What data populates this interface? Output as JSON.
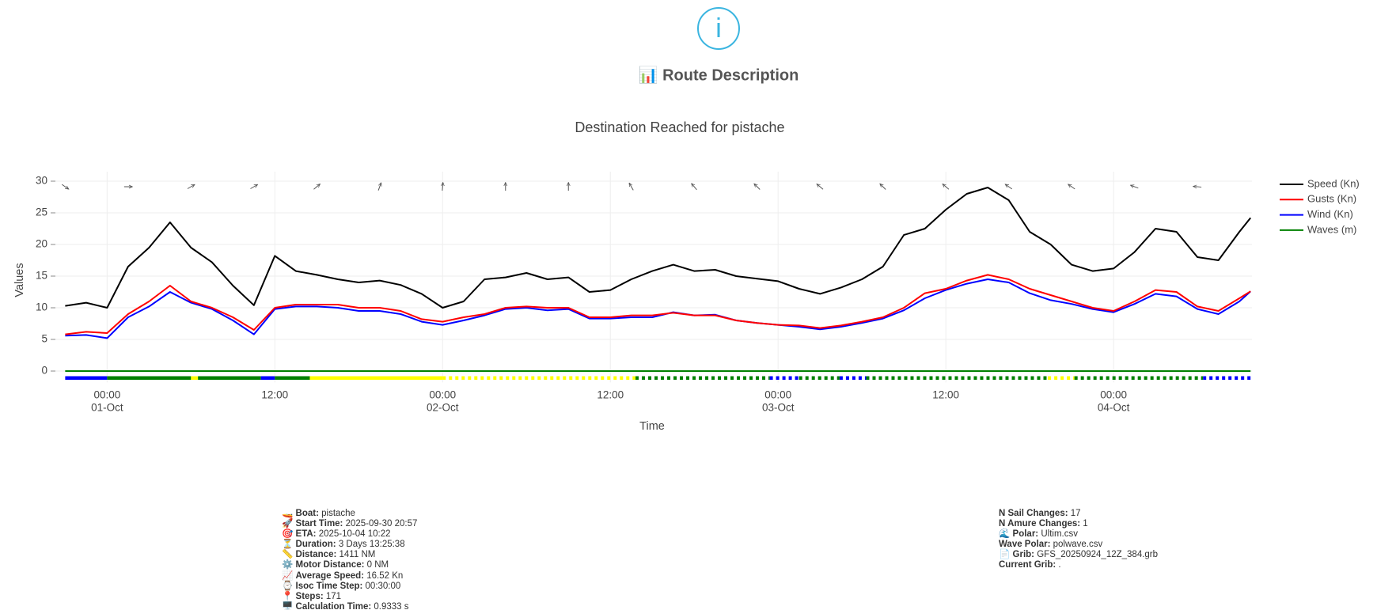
{
  "header": {
    "heading": "📊 Route Description"
  },
  "chart_data": {
    "type": "line",
    "title": "Destination Reached for pistache",
    "xlabel": "Time",
    "ylabel": "Values",
    "x": [
      -3,
      -1.5,
      0,
      1.5,
      3,
      4.5,
      6,
      7.5,
      9,
      10.5,
      12,
      13.5,
      15,
      16.5,
      18,
      19.5,
      21,
      22.5,
      24,
      25.5,
      27,
      28.5,
      30,
      31.5,
      33,
      34.5,
      36,
      37.5,
      39,
      40.5,
      42,
      43.5,
      45,
      46.5,
      48,
      49.5,
      51,
      52.5,
      54,
      55.5,
      57,
      58.5,
      60,
      61.5,
      63,
      64.5,
      66,
      67.5,
      69,
      70.5,
      72,
      73.5,
      75,
      76.5,
      78,
      79.5,
      81,
      81.8
    ],
    "series": [
      {
        "name": "Speed (Kn)",
        "color": "#000000",
        "values": [
          10.3,
          10.8,
          10.0,
          16.5,
          19.5,
          23.5,
          19.5,
          17.2,
          13.5,
          10.4,
          18.2,
          15.8,
          15.2,
          14.5,
          14.0,
          14.3,
          13.6,
          12.2,
          10.0,
          11.0,
          14.5,
          14.8,
          15.5,
          14.5,
          14.8,
          12.5,
          12.8,
          14.5,
          15.8,
          16.8,
          15.8,
          16.0,
          15.0,
          14.6,
          14.2,
          13.0,
          12.2,
          13.2,
          14.5,
          16.5,
          21.5,
          22.5,
          25.5,
          28.0,
          29.0,
          27.0,
          22.0,
          20.0,
          16.8,
          15.8,
          16.2,
          18.8,
          22.5,
          22.0,
          18.0,
          17.5,
          22.0,
          24.2
        ]
      },
      {
        "name": "Gusts (Kn)",
        "color": "#ff0000",
        "values": [
          5.8,
          6.2,
          6,
          9,
          11,
          13.5,
          11,
          10,
          8.5,
          6.5,
          10,
          10.5,
          10.5,
          10.5,
          10,
          10,
          9.5,
          8.2,
          7.8,
          8.5,
          9,
          10,
          10.2,
          10,
          10,
          8.5,
          8.5,
          8.8,
          8.8,
          9.2,
          8.8,
          8.8,
          8.0,
          7.6,
          7.3,
          7.2,
          6.8,
          7.2,
          7.8,
          8.5,
          10,
          12.3,
          13.0,
          14.3,
          15.2,
          14.5,
          13,
          12,
          11,
          10,
          9.5,
          11,
          12.8,
          12.5,
          10.2,
          9.5,
          11.5,
          12.6
        ]
      },
      {
        "name": "Wind (Kn)",
        "color": "#0000ff",
        "values": [
          5.6,
          5.7,
          5.2,
          8.5,
          10.2,
          12.5,
          10.8,
          9.8,
          8.0,
          5.8,
          9.8,
          10.2,
          10.2,
          10.0,
          9.5,
          9.5,
          9.0,
          7.8,
          7.3,
          8.0,
          8.8,
          9.8,
          10.0,
          9.6,
          9.8,
          8.3,
          8.3,
          8.5,
          8.5,
          9.3,
          8.8,
          8.9,
          8.0,
          7.6,
          7.3,
          7.0,
          6.6,
          7.0,
          7.6,
          8.3,
          9.6,
          11.5,
          12.8,
          13.8,
          14.5,
          14.0,
          12.3,
          11.2,
          10.6,
          9.8,
          9.3,
          10.6,
          12.2,
          11.8,
          9.8,
          9.0,
          11.0,
          12.6
        ]
      },
      {
        "name": "Waves (m)",
        "color": "#008000",
        "values": [
          0,
          0,
          0,
          0,
          0,
          0,
          0,
          0,
          0,
          0,
          0,
          0,
          0,
          0,
          0,
          0,
          0,
          0,
          0,
          0,
          0,
          0,
          0,
          0,
          0,
          0,
          0,
          0,
          0,
          0,
          0,
          0,
          0,
          0,
          0,
          0,
          0,
          0,
          0,
          0,
          0,
          0,
          0,
          0,
          0,
          0,
          0,
          0,
          0,
          0,
          0,
          0,
          0,
          0,
          0,
          0,
          0,
          0
        ]
      }
    ],
    "xlim": [
      -3.7,
      81.9
    ],
    "ylim": [
      -1.8,
      31.5
    ],
    "xticks": [
      {
        "value": 0,
        "label": "00:00",
        "date": "01-Oct"
      },
      {
        "value": 12,
        "label": "12:00"
      },
      {
        "value": 24,
        "label": "00:00",
        "date": "02-Oct"
      },
      {
        "value": 36,
        "label": "12:00"
      },
      {
        "value": 48,
        "label": "00:00",
        "date": "03-Oct"
      },
      {
        "value": 60,
        "label": "12:00"
      },
      {
        "value": 72,
        "label": "00:00",
        "date": "04-Oct"
      }
    ],
    "yticks": [
      0,
      5,
      10,
      15,
      20,
      25,
      30
    ],
    "grid": true,
    "legend": "right",
    "wind_arrows": {
      "x": [
        -3,
        1.5,
        6,
        10.5,
        15,
        19.5,
        24,
        28.5,
        33,
        37.5,
        42,
        46.5,
        51,
        55.5,
        60,
        64.5,
        69,
        73.5,
        78
      ],
      "angles": [
        35,
        0,
        -30,
        -30,
        -40,
        -70,
        -85,
        -90,
        -90,
        -120,
        -130,
        -135,
        -140,
        -135,
        -140,
        -145,
        -145,
        -160,
        -175
      ]
    },
    "sail_segments": [
      {
        "start": -3,
        "end": 0,
        "color": "#0000ff",
        "style": "solid"
      },
      {
        "start": 0,
        "end": 6,
        "color": "#008000",
        "style": "solid"
      },
      {
        "start": 6,
        "end": 6.5,
        "color": "#ffff00",
        "style": "solid"
      },
      {
        "start": 6.5,
        "end": 11,
        "color": "#008000",
        "style": "solid"
      },
      {
        "start": 11,
        "end": 12,
        "color": "#0000ff",
        "style": "solid"
      },
      {
        "start": 12,
        "end": 14.5,
        "color": "#008000",
        "style": "solid"
      },
      {
        "start": 14.5,
        "end": 24,
        "color": "#ffff00",
        "style": "solid"
      },
      {
        "start": 24,
        "end": 37.8,
        "color": "#ffff00",
        "style": "dotted"
      },
      {
        "start": 37.8,
        "end": 47.4,
        "color": "#008000",
        "style": "dotted"
      },
      {
        "start": 47.4,
        "end": 49.5,
        "color": "#0000ff",
        "style": "dotted"
      },
      {
        "start": 49.5,
        "end": 52.4,
        "color": "#008000",
        "style": "dotted"
      },
      {
        "start": 52.4,
        "end": 54.3,
        "color": "#0000ff",
        "style": "dotted"
      },
      {
        "start": 54.3,
        "end": 67.3,
        "color": "#008000",
        "style": "dotted"
      },
      {
        "start": 67.3,
        "end": 69.2,
        "color": "#ffff00",
        "style": "dotted"
      },
      {
        "start": 69.2,
        "end": 78.4,
        "color": "#008000",
        "style": "dotted"
      },
      {
        "start": 78.4,
        "end": 81.8,
        "color": "#0000ff",
        "style": "dotted"
      }
    ]
  },
  "info_left": [
    {
      "icon": "🚤",
      "label": "Boat:",
      "value": "pistache"
    },
    {
      "icon": "🚀",
      "label": "Start Time:",
      "value": "2025-09-30 20:57"
    },
    {
      "icon": "🎯",
      "label": "ETA:",
      "value": "2025-10-04 10:22"
    },
    {
      "icon": "⏳",
      "label": "Duration:",
      "value": "3 Days 13:25:38"
    },
    {
      "icon": "📏",
      "label": "Distance:",
      "value": "1411 NM"
    },
    {
      "icon": "⚙️",
      "label": "Motor Distance:",
      "value": "0 NM"
    },
    {
      "icon": "📈",
      "label": "Average Speed:",
      "value": "16.52 Kn"
    },
    {
      "icon": "⌚",
      "label": "Isoc Time Step:",
      "value": "00:30:00"
    },
    {
      "icon": "📍",
      "label": "Steps:",
      "value": "171"
    },
    {
      "icon": "🖥️",
      "label": "Calculation Time:",
      "value": "0.9333 s"
    }
  ],
  "info_right": [
    {
      "label": "N Sail Changes:",
      "value": "17"
    },
    {
      "label": "N Amure Changes:",
      "value": "1"
    },
    {
      "icon": "🌊",
      "label": "Polar:",
      "value": "Ultim.csv"
    },
    {
      "label": "Wave Polar:",
      "value": "polwave.csv"
    },
    {
      "icon": "📄",
      "label": "Grib:",
      "value": "GFS_20250924_12Z_384.grb"
    },
    {
      "label": "Current Grib:",
      "value": "."
    }
  ]
}
